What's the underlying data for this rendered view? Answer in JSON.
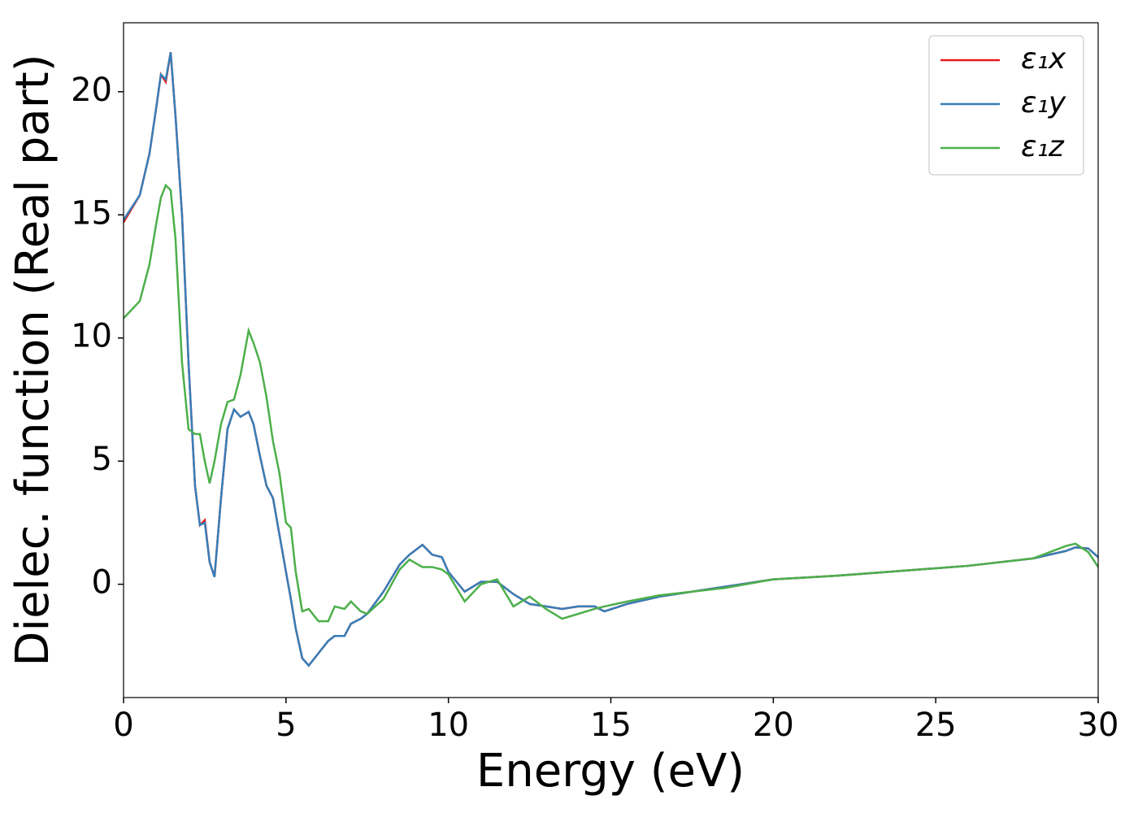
{
  "chart_data": {
    "type": "line",
    "x_label": "Energy (eV)",
    "y_label": "Dielec. function (Real part)",
    "x": [
      0,
      0.5,
      0.8,
      1.0,
      1.15,
      1.3,
      1.45,
      1.6,
      1.8,
      2.0,
      2.2,
      2.35,
      2.5,
      2.65,
      2.8,
      3.0,
      3.2,
      3.4,
      3.6,
      3.85,
      4.0,
      4.2,
      4.4,
      4.6,
      4.8,
      5.0,
      5.15,
      5.3,
      5.5,
      5.7,
      6.0,
      6.3,
      6.5,
      6.8,
      7.0,
      7.3,
      7.5,
      8.0,
      8.5,
      8.8,
      9.2,
      9.5,
      9.8,
      10.0,
      10.5,
      11.0,
      11.5,
      12.0,
      12.5,
      13.0,
      13.5,
      14.0,
      14.5,
      14.8,
      15.5,
      16.5,
      17.5,
      18.5,
      20,
      22,
      24,
      26,
      28,
      29,
      29.3,
      29.7,
      30
    ],
    "series": [
      {
        "name": "ε₁x",
        "color": "#e41a1c",
        "values": [
          14.7,
          15.8,
          17.5,
          19.3,
          20.7,
          20.4,
          21.6,
          19,
          15,
          9,
          4,
          2.4,
          2.6,
          0.9,
          0.3,
          3.5,
          6.3,
          7.1,
          6.8,
          7.0,
          6.5,
          5.2,
          4.0,
          3.5,
          2.0,
          0.5,
          -0.6,
          -1.8,
          -3.0,
          -3.3,
          -2.8,
          -2.3,
          -2.1,
          -2.1,
          -1.6,
          -1.4,
          -1.2,
          -0.3,
          0.8,
          1.2,
          1.6,
          1.2,
          1.1,
          0.5,
          -0.3,
          0.1,
          0.1,
          -0.4,
          -0.8,
          -0.9,
          -1.0,
          -0.9,
          -0.9,
          -1.1,
          -0.8,
          -0.5,
          -0.3,
          -0.1,
          0.2,
          0.35,
          0.55,
          0.75,
          1.05,
          1.35,
          1.5,
          1.45,
          1.1
        ]
      },
      {
        "name": "ε₁y",
        "color": "#377eb8",
        "values": [
          14.8,
          15.8,
          17.5,
          19.3,
          20.7,
          20.5,
          21.6,
          19,
          15,
          9,
          4,
          2.4,
          2.5,
          0.9,
          0.3,
          3.5,
          6.3,
          7.1,
          6.8,
          7.0,
          6.5,
          5.2,
          4.0,
          3.5,
          2.0,
          0.5,
          -0.6,
          -1.8,
          -3.0,
          -3.3,
          -2.8,
          -2.3,
          -2.1,
          -2.1,
          -1.6,
          -1.4,
          -1.2,
          -0.3,
          0.8,
          1.2,
          1.6,
          1.2,
          1.1,
          0.5,
          -0.3,
          0.1,
          0.1,
          -0.4,
          -0.8,
          -0.9,
          -1.0,
          -0.9,
          -0.9,
          -1.1,
          -0.8,
          -0.5,
          -0.3,
          -0.1,
          0.2,
          0.35,
          0.55,
          0.75,
          1.05,
          1.35,
          1.5,
          1.45,
          1.1
        ]
      },
      {
        "name": "ε₁z",
        "color": "#4daf4a",
        "values": [
          10.8,
          11.5,
          13,
          14.6,
          15.7,
          16.2,
          16.0,
          14,
          9,
          6.3,
          6.1,
          6.1,
          5,
          4.1,
          5,
          6.5,
          7.4,
          7.5,
          8.5,
          10.3,
          9.8,
          9.0,
          7.6,
          5.8,
          4.5,
          2.5,
          2.3,
          0.5,
          -1.1,
          -1.0,
          -1.5,
          -1.5,
          -0.9,
          -1.0,
          -0.7,
          -1.1,
          -1.2,
          -0.6,
          0.6,
          1.0,
          0.7,
          0.7,
          0.6,
          0.4,
          -0.7,
          0,
          0.2,
          -0.9,
          -0.5,
          -1.0,
          -1.4,
          -1.2,
          -1.0,
          -0.9,
          -0.7,
          -0.45,
          -0.3,
          -0.15,
          0.2,
          0.35,
          0.55,
          0.75,
          1.05,
          1.55,
          1.65,
          1.3,
          0.7
        ]
      }
    ],
    "xlim": [
      0,
      30
    ],
    "xticks": [
      0,
      5,
      10,
      15,
      20,
      25,
      30
    ],
    "ylim": [
      -4.6,
      22.8
    ],
    "yticks": [
      0,
      5,
      10,
      15,
      20
    ],
    "legend": "upper right"
  }
}
